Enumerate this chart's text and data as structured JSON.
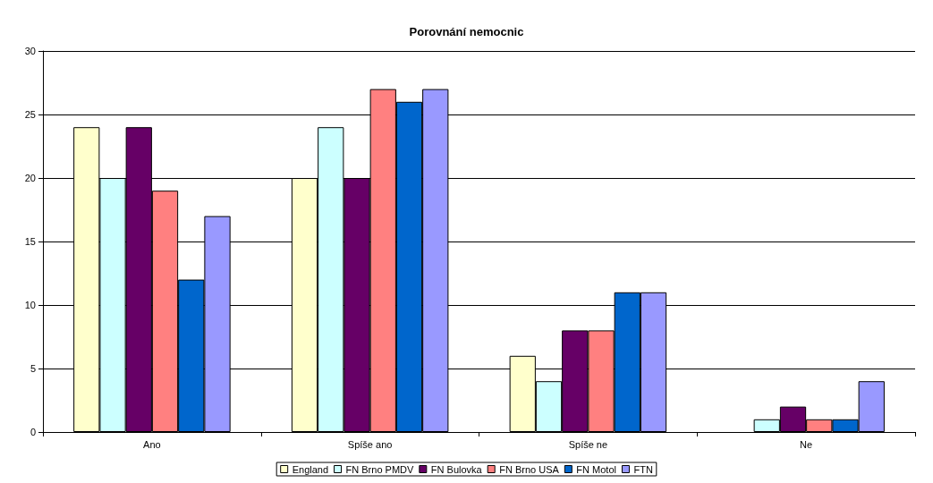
{
  "chart_data": {
    "type": "bar",
    "title": "Porovnání nemocnic",
    "categories": [
      "Ano",
      "Spíše ano",
      "Spíše ne",
      "Ne"
    ],
    "series": [
      {
        "name": "England",
        "color": "#ffffcc",
        "values": [
          24,
          20,
          6,
          0
        ]
      },
      {
        "name": "FN Brno PMDV",
        "color": "#ccffff",
        "values": [
          20,
          24,
          4,
          1
        ]
      },
      {
        "name": "FN Bulovka",
        "color": "#660066",
        "values": [
          24,
          20,
          8,
          2
        ]
      },
      {
        "name": "FN Brno USA",
        "color": "#ff8080",
        "values": [
          19,
          27,
          8,
          1
        ]
      },
      {
        "name": "FN Motol",
        "color": "#0066cc",
        "values": [
          12,
          26,
          11,
          1
        ]
      },
      {
        "name": "FTN",
        "color": "#9999ff",
        "values": [
          17,
          27,
          11,
          4
        ]
      }
    ],
    "ylim": [
      0,
      30
    ],
    "yticks": [
      0,
      5,
      10,
      15,
      20,
      25,
      30
    ],
    "grid": "y",
    "legend": "bottom"
  }
}
